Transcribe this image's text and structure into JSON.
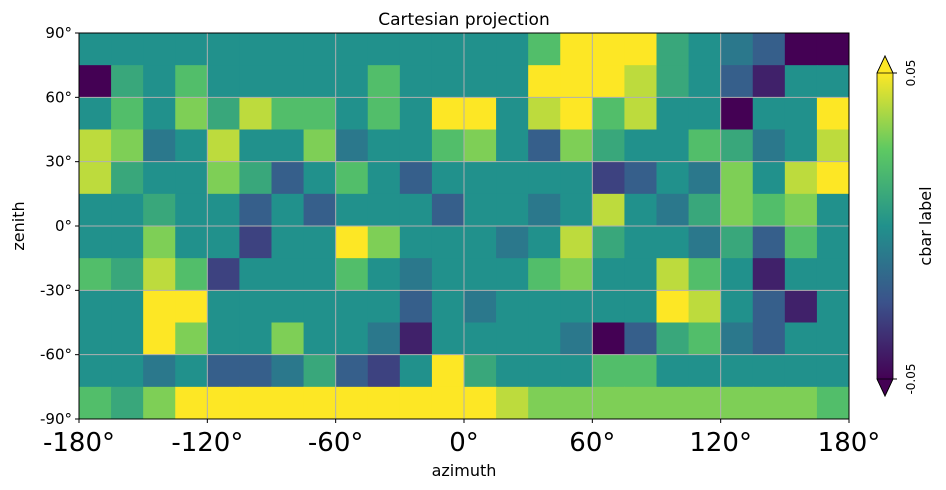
{
  "chart_data": {
    "type": "heatmap",
    "title": "Cartesian projection",
    "xlabel": "azimuth",
    "ylabel": "zenith",
    "xlim": [
      -180,
      180
    ],
    "ylim": [
      -90,
      90
    ],
    "x_ticks": [
      -180,
      -120,
      -60,
      0,
      60,
      120,
      180
    ],
    "x_tick_labels": [
      "-180°",
      "-120°",
      "-60°",
      "0°",
      "60°",
      "120°",
      "180°"
    ],
    "y_ticks": [
      -90,
      -60,
      -30,
      0,
      30,
      60,
      90
    ],
    "y_tick_labels": [
      "-90°",
      "-60°",
      "-30°",
      "0°",
      "30°",
      "60°",
      "90°"
    ],
    "grid": true,
    "colormap": "viridis",
    "colormap_colors": [
      "#440154",
      "#3b528b",
      "#21918c",
      "#5ec962",
      "#fde725"
    ],
    "colorbar": {
      "label": "cbar label",
      "min": -0.05,
      "max": 0.05,
      "tick_labels": [
        "-0.05",
        "0.05"
      ],
      "extend": "both"
    },
    "value_range": [
      -0.05,
      0.05
    ],
    "grid_shape": {
      "rows": 12,
      "cols": 24
    },
    "row_order": "top to bottom, from zenith 90° to -90° in 15° bands",
    "col_order": "left to right, from azimuth -180° to 180° in 15° bands",
    "values": [
      [
        0.0,
        0.0,
        0.0,
        0.0,
        0.0,
        0.0,
        0.0,
        0.0,
        0.0,
        0.0,
        0.0,
        0.0,
        0.0,
        0.0,
        0.02,
        0.05,
        0.05,
        0.05,
        0.01,
        0.0,
        -0.01,
        -0.02,
        -0.05,
        -0.05
      ],
      [
        -0.05,
        0.01,
        0.0,
        0.02,
        0.0,
        0.0,
        0.0,
        0.0,
        0.0,
        0.02,
        0.0,
        0.0,
        0.0,
        0.0,
        0.05,
        0.05,
        0.05,
        0.04,
        0.01,
        0.0,
        -0.02,
        -0.04,
        0.0,
        0.0
      ],
      [
        0.0,
        0.02,
        0.0,
        0.03,
        0.01,
        0.04,
        0.02,
        0.02,
        0.0,
        0.02,
        0.0,
        0.05,
        0.05,
        0.0,
        0.04,
        0.05,
        0.02,
        0.04,
        0.0,
        0.0,
        -0.05,
        0.0,
        0.0,
        0.05
      ],
      [
        0.04,
        0.03,
        -0.01,
        0.0,
        0.04,
        0.0,
        0.0,
        0.03,
        -0.01,
        0.0,
        0.0,
        0.02,
        0.03,
        0.0,
        -0.02,
        0.03,
        0.01,
        0.0,
        0.0,
        0.02,
        0.01,
        -0.01,
        0.0,
        0.04
      ],
      [
        0.04,
        0.01,
        0.0,
        0.0,
        0.03,
        0.01,
        -0.02,
        0.0,
        0.02,
        0.0,
        -0.02,
        0.0,
        0.0,
        0.0,
        0.0,
        0.0,
        -0.03,
        -0.02,
        0.0,
        -0.01,
        0.03,
        0.0,
        0.04,
        0.05
      ],
      [
        0.0,
        0.0,
        0.01,
        0.0,
        0.0,
        -0.02,
        0.0,
        -0.02,
        0.0,
        0.0,
        0.0,
        -0.02,
        0.0,
        0.0,
        -0.01,
        0.0,
        0.04,
        0.0,
        -0.01,
        0.01,
        0.03,
        0.02,
        0.03,
        0.0
      ],
      [
        0.0,
        0.0,
        0.03,
        0.0,
        0.0,
        -0.03,
        0.0,
        0.0,
        0.05,
        0.03,
        0.0,
        0.0,
        0.0,
        -0.01,
        0.0,
        0.04,
        0.01,
        0.0,
        0.0,
        -0.01,
        0.01,
        -0.02,
        0.02,
        0.0
      ],
      [
        0.02,
        0.01,
        0.04,
        0.02,
        -0.03,
        0.0,
        0.0,
        0.0,
        0.02,
        0.0,
        -0.01,
        0.0,
        0.0,
        0.0,
        0.02,
        0.03,
        0.0,
        0.0,
        0.04,
        0.02,
        0.0,
        -0.04,
        0.0,
        0.0
      ],
      [
        0.0,
        0.0,
        0.05,
        0.05,
        0.0,
        0.0,
        0.0,
        0.0,
        0.0,
        0.0,
        -0.02,
        0.0,
        -0.01,
        0.0,
        0.0,
        0.0,
        0.0,
        0.0,
        0.05,
        0.04,
        0.0,
        -0.02,
        -0.04,
        0.0
      ],
      [
        0.0,
        0.0,
        0.05,
        0.03,
        0.0,
        0.0,
        0.03,
        0.0,
        0.0,
        -0.01,
        -0.04,
        0.0,
        0.0,
        0.0,
        0.0,
        -0.01,
        -0.05,
        -0.02,
        0.01,
        0.02,
        -0.01,
        -0.02,
        0.0,
        0.0
      ],
      [
        0.0,
        0.0,
        -0.01,
        0.0,
        -0.02,
        -0.02,
        -0.01,
        0.01,
        -0.02,
        -0.03,
        0.0,
        0.05,
        0.01,
        0.0,
        0.0,
        0.0,
        0.02,
        0.02,
        0.0,
        0.0,
        0.0,
        0.0,
        0.0,
        0.0
      ],
      [
        0.02,
        0.01,
        0.03,
        0.05,
        0.05,
        0.05,
        0.05,
        0.05,
        0.05,
        0.05,
        0.05,
        0.05,
        0.05,
        0.04,
        0.03,
        0.03,
        0.03,
        0.03,
        0.03,
        0.03,
        0.03,
        0.03,
        0.03,
        0.02
      ]
    ]
  }
}
